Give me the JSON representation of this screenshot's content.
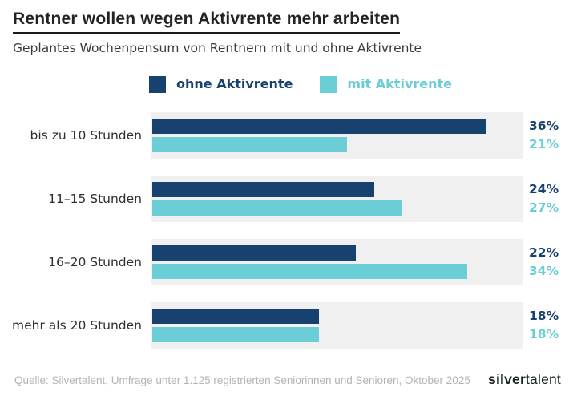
{
  "header": {
    "title": "Rentner wollen wegen Aktivrente mehr arbeiten",
    "subtitle": "Geplantes Wochenpensum von Rentnern mit und ohne Aktivrente"
  },
  "legend": {
    "items": [
      {
        "label": "ohne Aktivrente",
        "color": "#17416f"
      },
      {
        "label": "mit Aktivrente",
        "color": "#6bcdd6"
      }
    ]
  },
  "chart_data": {
    "type": "bar",
    "orientation": "horizontal",
    "title": "Rentner wollen wegen Aktivrente mehr arbeiten",
    "subtitle": "Geplantes Wochenpensum von Rentnern mit und ohne Aktivrente",
    "categories": [
      "bis zu 10 Stunden",
      "11–15 Stunden",
      "16–20 Stunden",
      "mehr als 20 Stunden"
    ],
    "series": [
      {
        "name": "ohne Aktivrente",
        "color": "#17416f",
        "values": [
          36,
          24,
          22,
          18
        ]
      },
      {
        "name": "mit Aktivrente",
        "color": "#6bcdd6",
        "values": [
          21,
          27,
          34,
          18
        ]
      }
    ],
    "value_suffix": "%",
    "xlim": [
      0,
      40
    ],
    "grid": false,
    "legend_position": "top",
    "track_color": "#f0f0f1"
  },
  "footer": {
    "source": "Quelle: Silvertalent, Umfrage unter 1.125 registrierten Seniorinnen und Senioren, Oktober 2025",
    "logo_bold": "silver",
    "logo_regular": "talent"
  }
}
